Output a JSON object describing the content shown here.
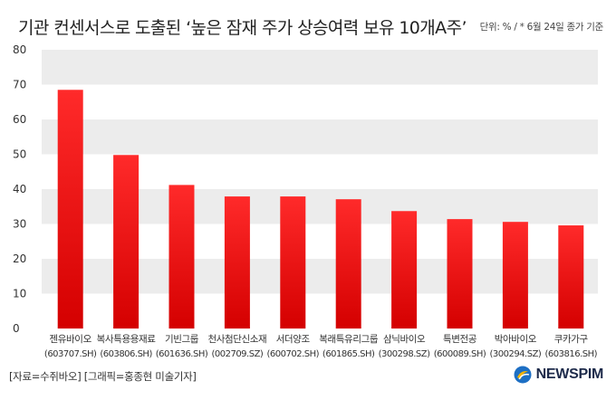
{
  "header": {
    "title": "기관 컨센서스로 도출된 ‘높은 잠재 주가 상승여력 보유 10개A주’",
    "unit_note": "단위: % / * 6월 24일 종가 기준"
  },
  "footer": {
    "source": "[자료=수쥐바오] [그래픽=홍종현 미술기자]",
    "logo_text": "NEWSPIM"
  },
  "colors": {
    "bar_top": "#ff2a2a",
    "bar_bottom": "#d40000",
    "band": "#ececec"
  },
  "chart_data": {
    "type": "bar",
    "title": "기관 컨센서스로 도출된 ‘높은 잠재 주가 상승여력 보유 10개A주’",
    "xlabel": "",
    "ylabel": "",
    "ylim": [
      0,
      80
    ],
    "yticks": [
      0,
      10,
      20,
      30,
      40,
      50,
      60,
      70,
      80
    ],
    "grid": "alternating horizontal bands",
    "legend": "none",
    "categories": [
      {
        "name": "젠유바이오",
        "code": "(603707.SH)"
      },
      {
        "name": "복사특용용재료",
        "code": "(603806.SH)"
      },
      {
        "name": "기빈그룹",
        "code": "(601636.SH)"
      },
      {
        "name": "천사첨단신소재",
        "code": "(002709.SZ)"
      },
      {
        "name": "서더양조",
        "code": "(600702.SH)"
      },
      {
        "name": "복래특유리그룹",
        "code": "(601865.SH)"
      },
      {
        "name": "삼닉바이오",
        "code": "(300298.SZ)"
      },
      {
        "name": "특변전공",
        "code": "(600089.SH)"
      },
      {
        "name": "박아바이오",
        "code": "(300294.SZ)"
      },
      {
        "name": "쿠카가구",
        "code": "(603816.SH)"
      }
    ],
    "values": [
      68.5,
      49.8,
      41.2,
      37.9,
      37.9,
      37.1,
      33.7,
      31.4,
      30.6,
      29.6
    ]
  }
}
